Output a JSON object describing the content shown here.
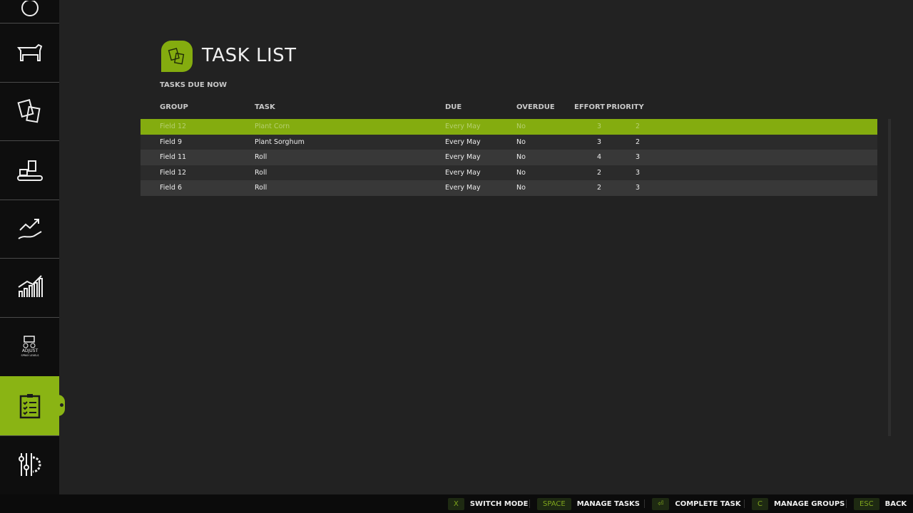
{
  "sidebar": {
    "items": [
      {
        "icon": "circle-icon"
      },
      {
        "icon": "cow-icon"
      },
      {
        "icon": "documents-icon"
      },
      {
        "icon": "production-icon"
      },
      {
        "icon": "growth-hand-icon"
      },
      {
        "icon": "bar-chart-icon"
      },
      {
        "icon": "adjust-spray-levels-icon",
        "label": "ADJUST SPRAY LEVELS"
      },
      {
        "icon": "clipboard-checklist-icon",
        "active": true
      },
      {
        "icon": "settings-sliders-icon"
      }
    ]
  },
  "header": {
    "title": "TASK LIST",
    "subtitle": "TASKS DUE NOW"
  },
  "table": {
    "columns": [
      "GROUP",
      "TASK",
      "DUE",
      "OVERDUE",
      "EFFORT",
      "PRIORITY"
    ],
    "rows": [
      {
        "group": "Field 12",
        "task": "Plant Corn",
        "due": "Every May",
        "overdue": "No",
        "effort": "3",
        "priority": "2",
        "selected": true
      },
      {
        "group": "Field 9",
        "task": "Plant Sorghum",
        "due": "Every May",
        "overdue": "No",
        "effort": "3",
        "priority": "2"
      },
      {
        "group": "Field 11",
        "task": "Roll",
        "due": "Every May",
        "overdue": "No",
        "effort": "4",
        "priority": "3"
      },
      {
        "group": "Field 12",
        "task": "Roll",
        "due": "Every May",
        "overdue": "No",
        "effort": "2",
        "priority": "3"
      },
      {
        "group": "Field 6",
        "task": "Roll",
        "due": "Every May",
        "overdue": "No",
        "effort": "2",
        "priority": "3"
      }
    ]
  },
  "footer": {
    "hints": [
      {
        "key": "X",
        "label": "SWITCH MODE"
      },
      {
        "key": "SPACE",
        "label": "MANAGE TASKS"
      },
      {
        "key": "⏎",
        "label": "COMPLETE TASK"
      },
      {
        "key": "C",
        "label": "MANAGE GROUPS"
      },
      {
        "key": "ESC",
        "label": "BACK"
      }
    ]
  },
  "colors": {
    "accent": "#84ac0f",
    "background": "#222222",
    "sidebar": "#0e0e0e"
  }
}
